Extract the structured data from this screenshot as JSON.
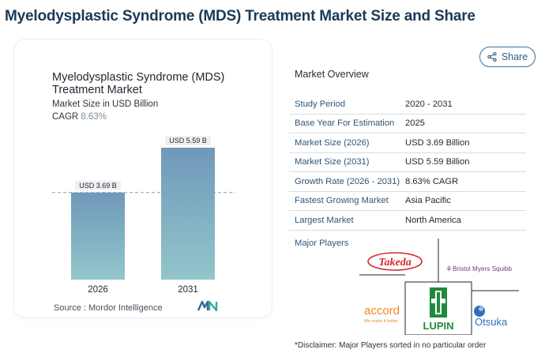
{
  "page": {
    "title": "Myelodysplastic Syndrome (MDS) Treatment Market Size and Share"
  },
  "share": {
    "label": "Share",
    "icon": "share-icon"
  },
  "chart": {
    "title": "Myelodysplastic Syndrome (MDS) Treatment Market",
    "subtitle": "Market Size in USD Billion",
    "cagr_label": "CAGR",
    "cagr_value": "8.63%",
    "source": "Source : Mordor Intelligence",
    "logo": "mordor-intelligence-logo"
  },
  "chart_data": {
    "type": "bar",
    "categories": [
      "2026",
      "2031"
    ],
    "values": [
      3.69,
      5.59
    ],
    "data_labels": [
      "USD 3.69 B",
      "USD 5.59 B"
    ],
    "title": "Myelodysplastic Syndrome (MDS) Treatment Market",
    "subtitle": "Market Size in USD Billion",
    "xlabel": "",
    "ylabel": "",
    "ylim": [
      0,
      5.59
    ],
    "grid": false,
    "reference_line": 3.69,
    "colors": {
      "bar_top": "#6f98b9",
      "bar_bottom": "#93c6cb",
      "label_bg": "#eef0f2"
    }
  },
  "overview": {
    "title": "Market Overview",
    "rows": [
      {
        "label": "Study Period",
        "value": "2020 - 2031"
      },
      {
        "label": "Base Year For Estimation",
        "value": "2025"
      },
      {
        "label": "Market Size (2026)",
        "value": "USD 3.69 Billion"
      },
      {
        "label": "Market Size (2031)",
        "value": "USD 5.59 Billion"
      },
      {
        "label": "Growth Rate (2026 - 2031)",
        "value": "8.63% CAGR"
      },
      {
        "label": "Fastest Growing Market",
        "value": "Asia Pacific"
      },
      {
        "label": "Largest Market",
        "value": "North America"
      }
    ]
  },
  "players": {
    "title": "Major Players",
    "logos": [
      {
        "name": "Takeda",
        "color": "#d7262f"
      },
      {
        "name": "Bristol Myers Squibb",
        "color": "#9b4e9a"
      },
      {
        "name": "accord",
        "tagline": "We make it better",
        "color": "#f08a1e"
      },
      {
        "name": "LUPIN",
        "color": "#1f8a3c"
      },
      {
        "name": "Otsuka",
        "color": "#2f6fb3"
      }
    ],
    "disclaimer": "*Disclaimer: Major Players sorted in no particular order"
  },
  "colors": {
    "accent": "#2f5f80",
    "title": "#1a3a57",
    "row_label": "#2f5577"
  }
}
